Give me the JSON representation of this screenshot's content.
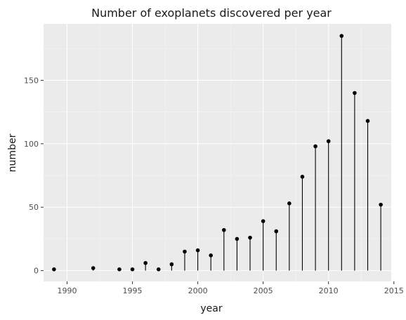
{
  "chart_data": {
    "type": "scatter",
    "style": "lollipop",
    "title": "Number of exoplanets discovered per year",
    "xlabel": "year",
    "ylabel": "number",
    "x": [
      1989,
      1992,
      1994,
      1995,
      1996,
      1997,
      1998,
      1999,
      2000,
      2001,
      2002,
      2003,
      2004,
      2005,
      2006,
      2007,
      2008,
      2009,
      2010,
      2011,
      2012,
      2013,
      2014
    ],
    "y": [
      1,
      2,
      1,
      1,
      6,
      1,
      5,
      15,
      16,
      12,
      32,
      25,
      26,
      39,
      31,
      53,
      74,
      98,
      102,
      185,
      140,
      118,
      52
    ],
    "xlim": [
      1988.2,
      2014.8
    ],
    "ylim": [
      -8.5,
      194.5
    ],
    "xticks": [
      1990,
      1995,
      2000,
      2005,
      2010,
      2015
    ],
    "yticks": [
      0,
      50,
      100,
      150
    ],
    "grid": true,
    "colors": {
      "panel": "#ebebeb",
      "grid_major": "#ffffff",
      "grid_minor": "#f5f5f5",
      "mark": "#000000"
    }
  }
}
